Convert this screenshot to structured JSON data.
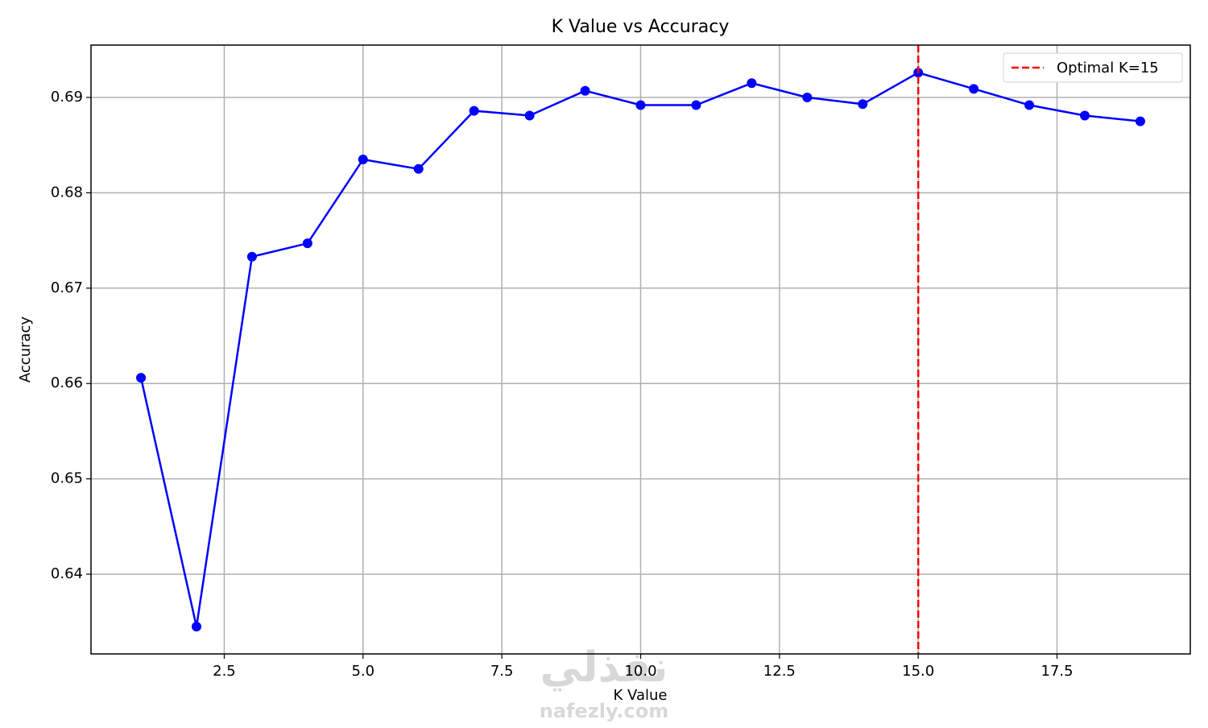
{
  "chart_data": {
    "type": "line",
    "title": "K Value vs Accuracy",
    "xlabel": "K Value",
    "ylabel": "Accuracy",
    "x": [
      1,
      2,
      3,
      4,
      5,
      6,
      7,
      8,
      9,
      10,
      11,
      12,
      13,
      14,
      15,
      16,
      17,
      18,
      19
    ],
    "series": [
      {
        "color": "#0000ff",
        "marker": "circle",
        "values": [
          0.6606,
          0.6345,
          0.6733,
          0.6747,
          0.6835,
          0.6825,
          0.6886,
          0.6881,
          0.6907,
          0.6892,
          0.6892,
          0.6915,
          0.69,
          0.6893,
          0.6926,
          0.6909,
          0.6892,
          0.6881,
          0.6875
        ]
      }
    ],
    "vline": {
      "x": 15,
      "label": "Optimal K=15",
      "color": "#ff0000",
      "dashed": true
    },
    "xlim": [
      0.1,
      19.9
    ],
    "xticks": [
      {
        "value": 2.5,
        "label": "2.5"
      },
      {
        "value": 5,
        "label": "5.0"
      },
      {
        "value": 7.5,
        "label": "7.5"
      },
      {
        "value": 10,
        "label": "10.0"
      },
      {
        "value": 12.5,
        "label": "12.5"
      },
      {
        "value": 15,
        "label": "15.0"
      },
      {
        "value": 17.5,
        "label": "17.5"
      }
    ],
    "ylim": [
      0.63164,
      0.69549
    ],
    "yticks": [
      0.64,
      0.65,
      0.66,
      0.67,
      0.68,
      0.69
    ],
    "grid": true,
    "legend": "upper right",
    "watermark": [
      "نفذلي",
      "nafezly.com"
    ]
  }
}
